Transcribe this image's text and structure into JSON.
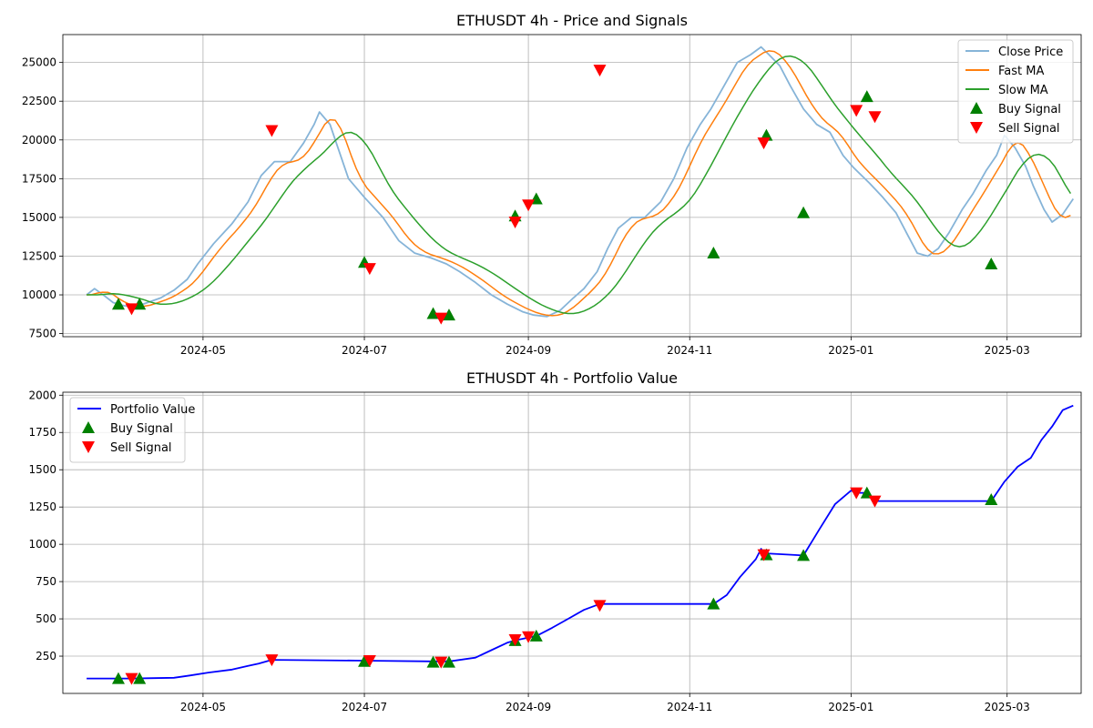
{
  "chart_data": [
    {
      "type": "line",
      "title": "ETHUSDT 4h - Price and Signals",
      "legend_position": "top-right",
      "grid": true,
      "ylim": [
        7300,
        26800
      ],
      "xlim": [
        "2024-03-09",
        "2025-03-29"
      ],
      "x_ticks": [
        {
          "date": "2024-05-01",
          "label": "2024-05"
        },
        {
          "date": "2024-07-01",
          "label": "2024-07"
        },
        {
          "date": "2024-09-01",
          "label": "2024-09"
        },
        {
          "date": "2024-11-01",
          "label": "2024-11"
        },
        {
          "date": "2025-01-01",
          "label": "2025-01"
        },
        {
          "date": "2025-03-01",
          "label": "2025-03"
        }
      ],
      "y_ticks": [
        7500,
        10000,
        12500,
        15000,
        17500,
        20000,
        22500,
        25000
      ],
      "y_tick_labels": [
        "7500",
        "10000",
        "12500",
        "15000",
        "17500",
        "20000",
        "22500",
        "25000"
      ],
      "series": [
        {
          "name": "Close Price",
          "color": "#86b4d8",
          "points": [
            [
              "2024-03-18",
              10000
            ],
            [
              "2024-03-21",
              10400
            ],
            [
              "2024-03-25",
              9900
            ],
            [
              "2024-03-28",
              9500
            ],
            [
              "2024-04-01",
              9300
            ],
            [
              "2024-04-05",
              9200
            ],
            [
              "2024-04-10",
              9500
            ],
            [
              "2024-04-15",
              9800
            ],
            [
              "2024-04-20",
              10300
            ],
            [
              "2024-04-25",
              11000
            ],
            [
              "2024-04-29",
              12000
            ],
            [
              "2024-05-05",
              13300
            ],
            [
              "2024-05-12",
              14600
            ],
            [
              "2024-05-18",
              16000
            ],
            [
              "2024-05-23",
              17700
            ],
            [
              "2024-05-28",
              18600
            ],
            [
              "2024-06-03",
              18600
            ],
            [
              "2024-06-08",
              19800
            ],
            [
              "2024-06-12",
              21000
            ],
            [
              "2024-06-14",
              21800
            ],
            [
              "2024-06-18",
              21000
            ],
            [
              "2024-06-21",
              19500
            ],
            [
              "2024-06-25",
              17500
            ],
            [
              "2024-07-01",
              16300
            ],
            [
              "2024-07-08",
              15000
            ],
            [
              "2024-07-14",
              13500
            ],
            [
              "2024-07-20",
              12700
            ],
            [
              "2024-07-26",
              12400
            ],
            [
              "2024-08-01",
              12000
            ],
            [
              "2024-08-06",
              11500
            ],
            [
              "2024-08-12",
              10800
            ],
            [
              "2024-08-18",
              10000
            ],
            [
              "2024-08-24",
              9400
            ],
            [
              "2024-08-30",
              8900
            ],
            [
              "2024-09-03",
              8700
            ],
            [
              "2024-09-08",
              8600
            ],
            [
              "2024-09-13",
              9000
            ],
            [
              "2024-09-18",
              9800
            ],
            [
              "2024-09-22",
              10400
            ],
            [
              "2024-09-27",
              11500
            ],
            [
              "2024-10-01",
              13000
            ],
            [
              "2024-10-05",
              14300
            ],
            [
              "2024-10-10",
              15000
            ],
            [
              "2024-10-15",
              15000
            ],
            [
              "2024-10-21",
              16000
            ],
            [
              "2024-10-26",
              17500
            ],
            [
              "2024-10-31",
              19500
            ],
            [
              "2024-11-05",
              21000
            ],
            [
              "2024-11-09",
              22000
            ],
            [
              "2024-11-14",
              23500
            ],
            [
              "2024-11-19",
              25000
            ],
            [
              "2024-11-24",
              25500
            ],
            [
              "2024-11-28",
              26000
            ],
            [
              "2024-12-01",
              25500
            ],
            [
              "2024-12-05",
              24800
            ],
            [
              "2024-12-09",
              23500
            ],
            [
              "2024-12-14",
              22000
            ],
            [
              "2024-12-19",
              21000
            ],
            [
              "2024-12-24",
              20500
            ],
            [
              "2024-12-29",
              19000
            ],
            [
              "2025-01-02",
              18200
            ],
            [
              "2025-01-08",
              17200
            ],
            [
              "2025-01-13",
              16300
            ],
            [
              "2025-01-18",
              15300
            ],
            [
              "2025-01-22",
              14000
            ],
            [
              "2025-01-26",
              12700
            ],
            [
              "2025-01-30",
              12500
            ],
            [
              "2025-02-03",
              13000
            ],
            [
              "2025-02-07",
              14000
            ],
            [
              "2025-02-12",
              15500
            ],
            [
              "2025-02-16",
              16500
            ],
            [
              "2025-02-21",
              18000
            ],
            [
              "2025-02-25",
              19000
            ],
            [
              "2025-02-28",
              20300
            ],
            [
              "2025-03-04",
              19500
            ],
            [
              "2025-03-08",
              18300
            ],
            [
              "2025-03-11",
              17000
            ],
            [
              "2025-03-15",
              15500
            ],
            [
              "2025-03-18",
              14700
            ],
            [
              "2025-03-22",
              15200
            ],
            [
              "2025-03-26",
              16200
            ]
          ]
        },
        {
          "name": "Fast MA",
          "color": "#ff7f0e",
          "points": []
        },
        {
          "name": "Slow MA",
          "color": "#2ca02c",
          "points": []
        },
        {
          "name": "Buy Signal",
          "color": "#008000",
          "marker": "triangle-up",
          "points": []
        },
        {
          "name": "Sell Signal",
          "color": "#ff0000",
          "marker": "triangle-down",
          "points": []
        }
      ]
    },
    {
      "type": "line",
      "title": "ETHUSDT 4h - Portfolio Value",
      "legend_position": "top-left",
      "grid": true,
      "ylim": [
        0,
        2020
      ],
      "xlim": [
        "2024-03-09",
        "2025-03-29"
      ],
      "x_ticks": [
        {
          "date": "2024-05-01",
          "label": "2024-05"
        },
        {
          "date": "2024-07-01",
          "label": "2024-07"
        },
        {
          "date": "2024-09-01",
          "label": "2024-09"
        },
        {
          "date": "2024-11-01",
          "label": "2024-11"
        },
        {
          "date": "2025-01-01",
          "label": "2025-01"
        },
        {
          "date": "2025-03-01",
          "label": "2025-03"
        }
      ],
      "y_ticks": [
        250,
        500,
        750,
        1000,
        1250,
        1500,
        1750,
        2000
      ],
      "y_tick_labels": [
        "250",
        "500",
        "750",
        "1000",
        "1250",
        "1500",
        "1750",
        "2000"
      ],
      "series": [
        {
          "name": "Portfolio Value",
          "color": "#0000ff",
          "points": []
        },
        {
          "name": "Buy Signal",
          "color": "#008000",
          "marker": "triangle-up",
          "points": []
        },
        {
          "name": "Sell Signal",
          "color": "#ff0000",
          "marker": "triangle-down",
          "points": []
        }
      ]
    }
  ]
}
